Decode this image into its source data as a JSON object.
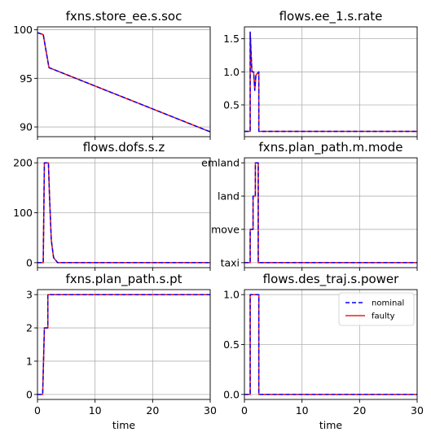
{
  "figure": {
    "background": "#ffffff"
  },
  "colors": {
    "nominal": "#0000ff",
    "faulty": "#e8201d",
    "grid": "#b0b0b0",
    "axes": "#000000"
  },
  "legend": {
    "placement": "upper-right",
    "panel": 5,
    "entries": [
      {
        "label": "nominal",
        "style": "dashed",
        "color": "#0000ff"
      },
      {
        "label": "faulty",
        "style": "solid",
        "color": "#e8201d"
      }
    ]
  },
  "chart_data": [
    {
      "type": "line",
      "title": "fxns.store_ee.s.soc",
      "xlabel": "",
      "xlim": [
        0,
        30
      ],
      "ylim": [
        89,
        100.3
      ],
      "xticks": [
        0,
        10,
        20,
        30
      ],
      "xticklabels": [],
      "yticks": [
        90,
        95,
        100
      ],
      "yticklabels": [
        "90",
        "95",
        "100"
      ],
      "grid": true,
      "series": [
        {
          "name": "nominal",
          "x": [
            0,
            1,
            2,
            30
          ],
          "y": [
            99.7,
            99.5,
            96.1,
            89.5
          ]
        },
        {
          "name": "faulty",
          "x": [
            0,
            1,
            2,
            30
          ],
          "y": [
            99.7,
            99.5,
            96.1,
            89.5
          ]
        }
      ]
    },
    {
      "type": "line",
      "title": "flows.ee_1.s.rate",
      "xlabel": "",
      "xlim": [
        0,
        30
      ],
      "ylim": [
        0.02,
        1.68
      ],
      "xticks": [
        0,
        10,
        20,
        30
      ],
      "xticklabels": [],
      "yticks": [
        0.5,
        1.0,
        1.5
      ],
      "yticklabels": [
        "0.5",
        "1.0",
        "1.5"
      ],
      "grid": true,
      "series": [
        {
          "name": "nominal",
          "x": [
            0,
            1,
            1,
            1.3,
            1.6,
            1.8,
            2,
            2.5,
            2.5,
            30
          ],
          "y": [
            0.1,
            0.1,
            1.6,
            1.0,
            1.0,
            0.72,
            0.95,
            1.0,
            0.1,
            0.1
          ]
        },
        {
          "name": "faulty",
          "x": [
            0,
            1,
            1,
            1.3,
            1.6,
            1.8,
            2,
            2.5,
            2.5,
            30
          ],
          "y": [
            0.1,
            0.1,
            1.6,
            1.0,
            1.0,
            0.72,
            0.95,
            1.0,
            0.1,
            0.1
          ]
        }
      ]
    },
    {
      "type": "line",
      "title": "flows.dofs.s.z",
      "xlabel": "",
      "xlim": [
        0,
        30
      ],
      "ylim": [
        -10,
        210
      ],
      "xticks": [
        0,
        10,
        20,
        30
      ],
      "xticklabels": [],
      "yticks": [
        0,
        100,
        200
      ],
      "yticklabels": [
        "0",
        "100",
        "200"
      ],
      "grid": true,
      "series": [
        {
          "name": "nominal",
          "x": [
            0,
            1,
            1.2,
            1.9,
            2.1,
            2.4,
            2.8,
            3.5,
            30
          ],
          "y": [
            0,
            0,
            200,
            200,
            130,
            45,
            10,
            0,
            0
          ]
        },
        {
          "name": "faulty",
          "x": [
            0,
            1,
            1.2,
            1.9,
            2.1,
            2.4,
            2.8,
            3.5,
            30
          ],
          "y": [
            0,
            0,
            200,
            200,
            130,
            45,
            10,
            0,
            0
          ]
        }
      ]
    },
    {
      "type": "line",
      "title": "fxns.plan_path.m.mode",
      "xlabel": "",
      "xlim": [
        0,
        30
      ],
      "ylim": [
        -0.15,
        3.15
      ],
      "xticks": [
        0,
        10,
        20,
        30
      ],
      "xticklabels": [],
      "yticks": [
        0,
        1,
        2,
        3
      ],
      "yticklabels": [
        "taxi",
        "move",
        "land",
        "emland"
      ],
      "grid": true,
      "series": [
        {
          "name": "nominal",
          "x": [
            0,
            1,
            1,
            1.5,
            1.5,
            1.9,
            1.9,
            2.4,
            2.4,
            30
          ],
          "y": [
            0,
            0,
            1,
            1,
            2,
            2,
            3,
            3,
            0,
            0
          ]
        },
        {
          "name": "faulty",
          "x": [
            0,
            1,
            1,
            1.5,
            1.5,
            1.9,
            1.9,
            2.4,
            2.4,
            30
          ],
          "y": [
            0,
            0,
            1,
            1,
            2,
            2,
            3,
            3,
            0,
            0
          ]
        }
      ]
    },
    {
      "type": "line",
      "title": "fxns.plan_path.s.pt",
      "xlabel": "time",
      "xlim": [
        0,
        30
      ],
      "ylim": [
        -0.15,
        3.15
      ],
      "xticks": [
        0,
        10,
        20,
        30
      ],
      "xticklabels": [
        "0",
        "10",
        "20",
        "30"
      ],
      "yticks": [
        0,
        1,
        2,
        3
      ],
      "yticklabels": [
        "0",
        "1",
        "2",
        "3"
      ],
      "grid": true,
      "series": [
        {
          "name": "nominal",
          "x": [
            0,
            0.9,
            1.2,
            1.5,
            1.8,
            1.8,
            30
          ],
          "y": [
            0,
            0,
            2,
            2,
            2,
            3,
            3
          ]
        },
        {
          "name": "faulty",
          "x": [
            0,
            0.9,
            1.2,
            1.5,
            1.8,
            1.8,
            30
          ],
          "y": [
            0,
            0,
            2,
            2,
            2,
            3,
            3
          ]
        }
      ]
    },
    {
      "type": "line",
      "title": "flows.des_traj.s.power",
      "xlabel": "time",
      "xlim": [
        0,
        30
      ],
      "ylim": [
        -0.05,
        1.05
      ],
      "xticks": [
        0,
        10,
        20,
        30
      ],
      "xticklabels": [
        "0",
        "10",
        "20",
        "30"
      ],
      "yticks": [
        0.0,
        0.5,
        1.0
      ],
      "yticklabels": [
        "0.0",
        "0.5",
        "1.0"
      ],
      "grid": true,
      "series": [
        {
          "name": "nominal",
          "x": [
            0,
            1,
            1,
            2.5,
            2.5,
            30
          ],
          "y": [
            0,
            0,
            1,
            1,
            0,
            0
          ]
        },
        {
          "name": "faulty",
          "x": [
            0,
            1,
            1,
            2.5,
            2.5,
            30
          ],
          "y": [
            0,
            0,
            1,
            1,
            0,
            0
          ]
        }
      ]
    }
  ]
}
